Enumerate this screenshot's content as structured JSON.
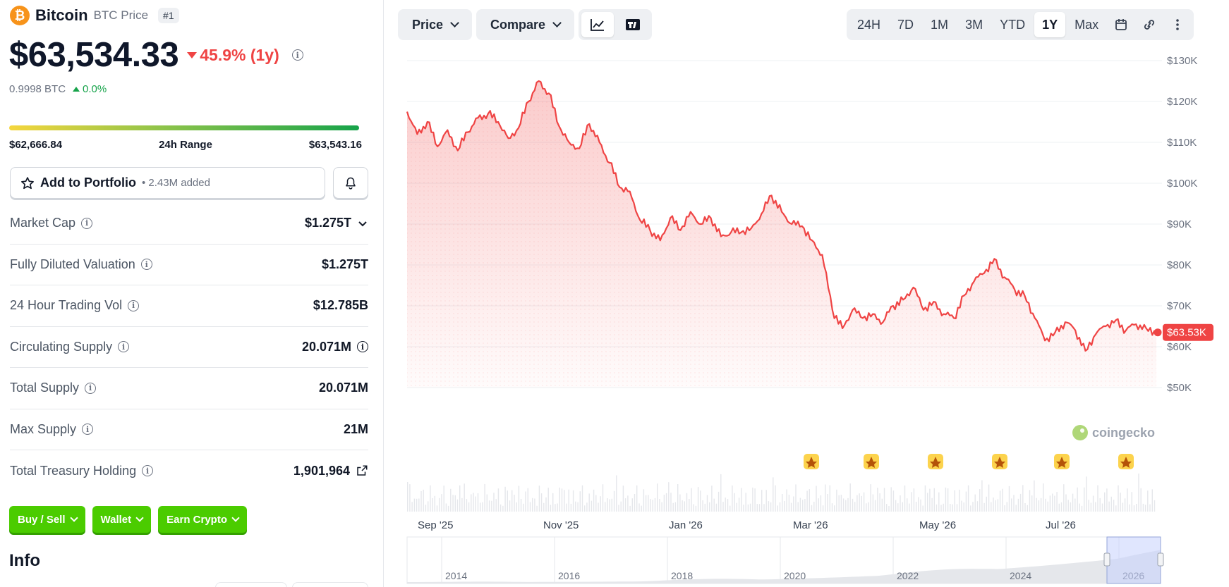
{
  "coin": {
    "name": "Bitcoin",
    "subtitle": "BTC Price",
    "rank": "#1",
    "price": "$63,534.33",
    "change": "45.9% (1y)",
    "btc_value": "0.9998 BTC",
    "btc_change": "0.0%"
  },
  "range": {
    "low": "$62,666.84",
    "label": "24h Range",
    "high": "$63,543.16"
  },
  "portfolio": {
    "label": "Add to Portfolio",
    "added": "• 2.43M added"
  },
  "stats": [
    {
      "label": "Market Cap",
      "value": "$1.275T"
    },
    {
      "label": "Fully Diluted Valuation",
      "value": "$1.275T"
    },
    {
      "label": "24 Hour Trading Vol",
      "value": "$12.785B"
    },
    {
      "label": "Circulating Supply",
      "value": "20.071M"
    },
    {
      "label": "Total Supply",
      "value": "20.071M"
    },
    {
      "label": "Max Supply",
      "value": "21M"
    },
    {
      "label": "Total Treasury Holding",
      "value": "1,901,964"
    }
  ],
  "actions": {
    "buy_sell": "Buy / Sell",
    "wallet": "Wallet",
    "earn": "Earn Crypto"
  },
  "info_title": "Info",
  "toolbar": {
    "price": "Price",
    "compare": "Compare",
    "timeframes": [
      "24H",
      "7D",
      "1M",
      "3M",
      "YTD",
      "1Y",
      "Max"
    ],
    "active_timeframe": "1Y"
  },
  "colors": {
    "accent_red": "#ef4444",
    "accent_green": "#4bcc00",
    "btc_orange": "#f7931a"
  },
  "chart_data": {
    "type": "area",
    "y_ticks": [
      "$130K",
      "$120K",
      "$110K",
      "$100K",
      "$90K",
      "$80K",
      "$70K",
      "$60K",
      "$50K"
    ],
    "y_range": [
      50000,
      130000
    ],
    "x_ticks": [
      "Sep '25",
      "Nov '25",
      "Jan '26",
      "Mar '26",
      "May '26",
      "Jul '26"
    ],
    "last_price_label": "$63.53K",
    "watermark": "coingecko",
    "navigator_ticks": [
      "2014",
      "2016",
      "2018",
      "2020",
      "2022",
      "2024",
      "2026"
    ],
    "series": [
      {
        "values": [
          117500,
          112000,
          115000,
          109000,
          113000,
          108000,
          112500,
          116000,
          117000,
          115000,
          111000,
          113500,
          120000,
          125000,
          122000,
          114000,
          110000,
          108500,
          114500,
          110000,
          105000,
          99000,
          98000,
          91000,
          88500,
          86000,
          91500,
          88500,
          93000,
          90000,
          91500,
          87000,
          88000,
          88000,
          89000,
          92500,
          97000,
          93000,
          90000,
          89500,
          86000,
          82500,
          69000,
          64500,
          69000,
          67000,
          68000,
          66000,
          70000,
          71500,
          74500,
          69000,
          71000,
          68000,
          67000,
          72500,
          76000,
          78000,
          81500,
          77000,
          74000,
          72500,
          67000,
          61500,
          63500,
          66000,
          64000,
          59000,
          63000,
          65000,
          66500,
          64000,
          65500,
          64500,
          63500
        ]
      }
    ],
    "event_markers": 6
  }
}
